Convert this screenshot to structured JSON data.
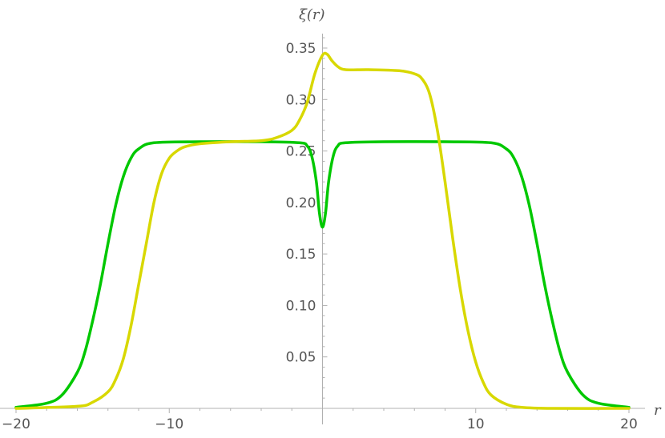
{
  "chart_data": {
    "type": "line",
    "xlabel": "r",
    "ylabel": "ξ(r)",
    "xlim": [
      -20,
      20
    ],
    "ylim": [
      0,
      0.36
    ],
    "x_ticks": [
      -20,
      -10,
      10,
      20
    ],
    "x_tick_labels": [
      "−20",
      "−10",
      "10",
      "20"
    ],
    "y_ticks": [
      0.05,
      0.1,
      0.15,
      0.2,
      0.25,
      0.3,
      0.35
    ],
    "y_tick_labels": [
      "0.05",
      "0.10",
      "0.15",
      "0.20",
      "0.25",
      "0.30",
      "0.35"
    ],
    "grid": false,
    "series": [
      {
        "color": "#00c800",
        "x": [
          -20,
          -18,
          -17,
          -16,
          -15.5,
          -15,
          -14.5,
          -14,
          -13.5,
          -13,
          -12.5,
          -12,
          -11,
          -8,
          -4,
          -1.5,
          -1,
          -0.7,
          -0.4,
          -0.2,
          0,
          0.2,
          0.4,
          0.7,
          1,
          1.5,
          4,
          8,
          11,
          12,
          12.5,
          13,
          13.5,
          14,
          14.5,
          15,
          15.5,
          16,
          17,
          18,
          20
        ],
        "y": [
          0.001,
          0.005,
          0.013,
          0.035,
          0.055,
          0.085,
          0.12,
          0.16,
          0.197,
          0.225,
          0.243,
          0.252,
          0.258,
          0.259,
          0.259,
          0.258,
          0.255,
          0.245,
          0.22,
          0.19,
          0.176,
          0.19,
          0.22,
          0.245,
          0.255,
          0.258,
          0.259,
          0.259,
          0.258,
          0.252,
          0.243,
          0.225,
          0.197,
          0.16,
          0.12,
          0.085,
          0.055,
          0.035,
          0.013,
          0.005,
          0.001
        ]
      },
      {
        "color": "#d8d800",
        "x": [
          -20,
          -16,
          -15,
          -14,
          -13.5,
          -13,
          -12.5,
          -12,
          -11.5,
          -11,
          -10.5,
          -10,
          -9.5,
          -9,
          -8,
          -6,
          -4,
          -3,
          -2,
          -1.5,
          -1,
          -0.5,
          0,
          0.3,
          0.6,
          1,
          1.5,
          3,
          5,
          6,
          6.5,
          7,
          7.5,
          8,
          8.5,
          9,
          9.5,
          10,
          10.5,
          11,
          12,
          13,
          15,
          20
        ],
        "y": [
          0,
          0.002,
          0.006,
          0.016,
          0.028,
          0.048,
          0.08,
          0.12,
          0.16,
          0.2,
          0.228,
          0.243,
          0.25,
          0.254,
          0.257,
          0.259,
          0.26,
          0.263,
          0.27,
          0.28,
          0.297,
          0.325,
          0.343,
          0.344,
          0.338,
          0.332,
          0.329,
          0.329,
          0.328,
          0.325,
          0.32,
          0.305,
          0.27,
          0.22,
          0.165,
          0.115,
          0.075,
          0.045,
          0.025,
          0.013,
          0.004,
          0.001,
          0,
          0
        ]
      }
    ]
  }
}
